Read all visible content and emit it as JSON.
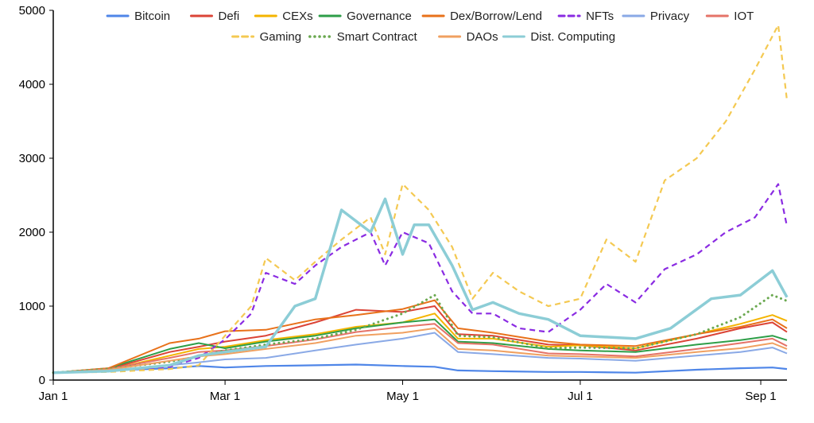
{
  "chart_data": {
    "type": "line",
    "title": "",
    "xlabel": "",
    "ylabel": "",
    "ylim": [
      0,
      5000
    ],
    "yticks": [
      0,
      1000,
      2000,
      3000,
      4000,
      5000
    ],
    "yticks_labels": [
      "0",
      "1000",
      "2000",
      "3000",
      "4000",
      "5000"
    ],
    "xlim": [
      "Jan 1",
      "Sep 10"
    ],
    "xticks": [
      {
        "label": "Jan 1",
        "date": "2021-01-01"
      },
      {
        "label": "Mar 1",
        "date": "2021-03-01"
      },
      {
        "label": "May 1",
        "date": "2021-05-01"
      },
      {
        "label": "Jul 1",
        "date": "2021-07-01"
      },
      {
        "label": "Sep 1",
        "date": "2021-09-01"
      }
    ],
    "grid": false,
    "legend_position": "top",
    "series": [
      {
        "name": "Bitcoin",
        "color": "#4f86e8",
        "style": "solid",
        "width": 2.2,
        "points": [
          [
            "2021-01-01",
            100
          ],
          [
            "2021-01-20",
            130
          ],
          [
            "2021-02-10",
            160
          ],
          [
            "2021-02-20",
            190
          ],
          [
            "2021-03-01",
            170
          ],
          [
            "2021-03-15",
            190
          ],
          [
            "2021-04-01",
            200
          ],
          [
            "2021-04-15",
            210
          ],
          [
            "2021-05-01",
            190
          ],
          [
            "2021-05-12",
            180
          ],
          [
            "2021-05-20",
            130
          ],
          [
            "2021-06-01",
            120
          ],
          [
            "2021-06-20",
            110
          ],
          [
            "2021-07-01",
            110
          ],
          [
            "2021-07-20",
            100
          ],
          [
            "2021-08-10",
            140
          ],
          [
            "2021-08-25",
            160
          ],
          [
            "2021-09-05",
            170
          ],
          [
            "2021-09-10",
            150
          ]
        ]
      },
      {
        "name": "Defi",
        "color": "#db4437",
        "style": "solid",
        "width": 2,
        "points": [
          [
            "2021-01-01",
            100
          ],
          [
            "2021-01-20",
            150
          ],
          [
            "2021-02-10",
            380
          ],
          [
            "2021-02-20",
            450
          ],
          [
            "2021-03-01",
            520
          ],
          [
            "2021-03-15",
            600
          ],
          [
            "2021-04-01",
            780
          ],
          [
            "2021-04-15",
            950
          ],
          [
            "2021-05-01",
            920
          ],
          [
            "2021-05-12",
            1000
          ],
          [
            "2021-05-20",
            620
          ],
          [
            "2021-06-01",
            600
          ],
          [
            "2021-06-20",
            480
          ],
          [
            "2021-07-01",
            470
          ],
          [
            "2021-07-20",
            400
          ],
          [
            "2021-08-10",
            560
          ],
          [
            "2021-08-25",
            700
          ],
          [
            "2021-09-05",
            780
          ],
          [
            "2021-09-10",
            650
          ]
        ]
      },
      {
        "name": "CEXs",
        "color": "#f4b400",
        "style": "solid",
        "width": 2,
        "points": [
          [
            "2021-01-01",
            100
          ],
          [
            "2021-01-20",
            140
          ],
          [
            "2021-02-10",
            330
          ],
          [
            "2021-02-20",
            420
          ],
          [
            "2021-03-01",
            450
          ],
          [
            "2021-03-15",
            540
          ],
          [
            "2021-04-01",
            620
          ],
          [
            "2021-04-15",
            720
          ],
          [
            "2021-05-01",
            780
          ],
          [
            "2021-05-12",
            900
          ],
          [
            "2021-05-20",
            560
          ],
          [
            "2021-06-01",
            560
          ],
          [
            "2021-06-20",
            450
          ],
          [
            "2021-07-01",
            470
          ],
          [
            "2021-07-20",
            430
          ],
          [
            "2021-08-10",
            620
          ],
          [
            "2021-08-25",
            760
          ],
          [
            "2021-09-05",
            880
          ],
          [
            "2021-09-10",
            800
          ]
        ]
      },
      {
        "name": "Governance",
        "color": "#2e9e48",
        "style": "solid",
        "width": 2,
        "points": [
          [
            "2021-01-01",
            100
          ],
          [
            "2021-01-20",
            160
          ],
          [
            "2021-02-10",
            420
          ],
          [
            "2021-02-20",
            500
          ],
          [
            "2021-03-01",
            430
          ],
          [
            "2021-03-15",
            520
          ],
          [
            "2021-04-01",
            600
          ],
          [
            "2021-04-15",
            700
          ],
          [
            "2021-05-01",
            780
          ],
          [
            "2021-05-12",
            820
          ],
          [
            "2021-05-20",
            520
          ],
          [
            "2021-06-01",
            500
          ],
          [
            "2021-06-20",
            420
          ],
          [
            "2021-07-01",
            400
          ],
          [
            "2021-07-20",
            380
          ],
          [
            "2021-08-10",
            480
          ],
          [
            "2021-08-25",
            540
          ],
          [
            "2021-09-05",
            600
          ],
          [
            "2021-09-10",
            540
          ]
        ]
      },
      {
        "name": "Dex/Borrow/Lend",
        "color": "#e8711a",
        "style": "solid",
        "width": 2,
        "points": [
          [
            "2021-01-01",
            100
          ],
          [
            "2021-01-20",
            160
          ],
          [
            "2021-02-10",
            500
          ],
          [
            "2021-02-20",
            560
          ],
          [
            "2021-03-01",
            660
          ],
          [
            "2021-03-15",
            680
          ],
          [
            "2021-04-01",
            820
          ],
          [
            "2021-04-15",
            880
          ],
          [
            "2021-05-01",
            960
          ],
          [
            "2021-05-12",
            1080
          ],
          [
            "2021-05-20",
            700
          ],
          [
            "2021-06-01",
            640
          ],
          [
            "2021-06-20",
            520
          ],
          [
            "2021-07-01",
            480
          ],
          [
            "2021-07-20",
            460
          ],
          [
            "2021-08-10",
            620
          ],
          [
            "2021-08-25",
            720
          ],
          [
            "2021-09-05",
            820
          ],
          [
            "2021-09-10",
            700
          ]
        ]
      },
      {
        "name": "NFTs",
        "color": "#8a2be2",
        "style": "dashed",
        "width": 2.2,
        "points": [
          [
            "2021-01-01",
            100
          ],
          [
            "2021-01-20",
            120
          ],
          [
            "2021-02-10",
            180
          ],
          [
            "2021-02-20",
            300
          ],
          [
            "2021-03-01",
            550
          ],
          [
            "2021-03-10",
            900
          ],
          [
            "2021-03-15",
            1450
          ],
          [
            "2021-03-25",
            1300
          ],
          [
            "2021-04-01",
            1550
          ],
          [
            "2021-04-10",
            1800
          ],
          [
            "2021-04-20",
            2000
          ],
          [
            "2021-04-25",
            1550
          ],
          [
            "2021-05-01",
            2000
          ],
          [
            "2021-05-10",
            1850
          ],
          [
            "2021-05-18",
            1200
          ],
          [
            "2021-05-25",
            900
          ],
          [
            "2021-06-01",
            900
          ],
          [
            "2021-06-10",
            700
          ],
          [
            "2021-06-20",
            650
          ],
          [
            "2021-07-01",
            950
          ],
          [
            "2021-07-10",
            1300
          ],
          [
            "2021-07-20",
            1050
          ],
          [
            "2021-07-30",
            1500
          ],
          [
            "2021-08-10",
            1700
          ],
          [
            "2021-08-20",
            2000
          ],
          [
            "2021-08-30",
            2200
          ],
          [
            "2021-09-07",
            2650
          ],
          [
            "2021-09-10",
            2080
          ]
        ]
      },
      {
        "name": "Privacy",
        "color": "#8aa9e6",
        "style": "solid",
        "width": 2,
        "points": [
          [
            "2021-01-01",
            100
          ],
          [
            "2021-01-20",
            120
          ],
          [
            "2021-02-10",
            200
          ],
          [
            "2021-02-20",
            240
          ],
          [
            "2021-03-01",
            280
          ],
          [
            "2021-03-15",
            300
          ],
          [
            "2021-04-01",
            400
          ],
          [
            "2021-04-15",
            480
          ],
          [
            "2021-05-01",
            560
          ],
          [
            "2021-05-12",
            640
          ],
          [
            "2021-05-20",
            380
          ],
          [
            "2021-06-01",
            350
          ],
          [
            "2021-06-20",
            300
          ],
          [
            "2021-07-01",
            290
          ],
          [
            "2021-07-20",
            260
          ],
          [
            "2021-08-10",
            330
          ],
          [
            "2021-08-25",
            380
          ],
          [
            "2021-09-05",
            440
          ],
          [
            "2021-09-10",
            360
          ]
        ]
      },
      {
        "name": "IOT",
        "color": "#e57368",
        "style": "solid",
        "width": 2,
        "points": [
          [
            "2021-01-01",
            100
          ],
          [
            "2021-01-20",
            150
          ],
          [
            "2021-02-10",
            300
          ],
          [
            "2021-02-20",
            380
          ],
          [
            "2021-03-01",
            400
          ],
          [
            "2021-03-15",
            460
          ],
          [
            "2021-04-01",
            550
          ],
          [
            "2021-04-15",
            650
          ],
          [
            "2021-05-01",
            720
          ],
          [
            "2021-05-12",
            760
          ],
          [
            "2021-05-20",
            500
          ],
          [
            "2021-06-01",
            480
          ],
          [
            "2021-06-20",
            360
          ],
          [
            "2021-07-01",
            350
          ],
          [
            "2021-07-20",
            320
          ],
          [
            "2021-08-10",
            420
          ],
          [
            "2021-08-25",
            500
          ],
          [
            "2021-09-05",
            560
          ],
          [
            "2021-09-10",
            460
          ]
        ]
      },
      {
        "name": "Gaming",
        "color": "#f4c952",
        "style": "dashed",
        "width": 2.2,
        "points": [
          [
            "2021-01-01",
            100
          ],
          [
            "2021-01-20",
            110
          ],
          [
            "2021-02-10",
            150
          ],
          [
            "2021-02-20",
            200
          ],
          [
            "2021-03-01",
            600
          ],
          [
            "2021-03-10",
            1000
          ],
          [
            "2021-03-15",
            1650
          ],
          [
            "2021-03-25",
            1350
          ],
          [
            "2021-04-01",
            1600
          ],
          [
            "2021-04-10",
            1900
          ],
          [
            "2021-04-20",
            2200
          ],
          [
            "2021-04-25",
            1700
          ],
          [
            "2021-05-01",
            2650
          ],
          [
            "2021-05-10",
            2300
          ],
          [
            "2021-05-18",
            1800
          ],
          [
            "2021-05-25",
            1100
          ],
          [
            "2021-06-01",
            1450
          ],
          [
            "2021-06-10",
            1200
          ],
          [
            "2021-06-20",
            1000
          ],
          [
            "2021-07-01",
            1100
          ],
          [
            "2021-07-10",
            1900
          ],
          [
            "2021-07-20",
            1600
          ],
          [
            "2021-07-30",
            2700
          ],
          [
            "2021-08-10",
            3000
          ],
          [
            "2021-08-20",
            3500
          ],
          [
            "2021-08-30",
            4200
          ],
          [
            "2021-09-07",
            4800
          ],
          [
            "2021-09-10",
            3780
          ]
        ]
      },
      {
        "name": "Smart Contract",
        "color": "#6aa84f",
        "style": "dotted",
        "width": 3,
        "points": [
          [
            "2021-01-01",
            100
          ],
          [
            "2021-01-20",
            150
          ],
          [
            "2021-02-10",
            250
          ],
          [
            "2021-02-20",
            320
          ],
          [
            "2021-03-01",
            400
          ],
          [
            "2021-03-15",
            480
          ],
          [
            "2021-04-01",
            560
          ],
          [
            "2021-04-15",
            680
          ],
          [
            "2021-05-01",
            900
          ],
          [
            "2021-05-12",
            1150
          ],
          [
            "2021-05-20",
            600
          ],
          [
            "2021-06-01",
            580
          ],
          [
            "2021-06-20",
            430
          ],
          [
            "2021-07-01",
            440
          ],
          [
            "2021-07-20",
            430
          ],
          [
            "2021-08-10",
            620
          ],
          [
            "2021-08-25",
            850
          ],
          [
            "2021-09-05",
            1150
          ],
          [
            "2021-09-10",
            1070
          ]
        ]
      },
      {
        "name": "DAOs",
        "color": "#f0a060",
        "style": "solid",
        "width": 2,
        "points": [
          [
            "2021-01-01",
            100
          ],
          [
            "2021-01-20",
            140
          ],
          [
            "2021-02-10",
            260
          ],
          [
            "2021-02-20",
            320
          ],
          [
            "2021-03-01",
            350
          ],
          [
            "2021-03-15",
            420
          ],
          [
            "2021-04-01",
            500
          ],
          [
            "2021-04-15",
            600
          ],
          [
            "2021-05-01",
            640
          ],
          [
            "2021-05-12",
            700
          ],
          [
            "2021-05-20",
            420
          ],
          [
            "2021-06-01",
            400
          ],
          [
            "2021-06-20",
            330
          ],
          [
            "2021-07-01",
            320
          ],
          [
            "2021-07-20",
            300
          ],
          [
            "2021-08-10",
            380
          ],
          [
            "2021-08-25",
            430
          ],
          [
            "2021-09-05",
            500
          ],
          [
            "2021-09-10",
            420
          ]
        ]
      },
      {
        "name": "Dist. Computing",
        "color": "#8ccdd6",
        "style": "solid",
        "width": 3.5,
        "points": [
          [
            "2021-01-01",
            100
          ],
          [
            "2021-01-20",
            120
          ],
          [
            "2021-02-10",
            200
          ],
          [
            "2021-02-20",
            330
          ],
          [
            "2021-03-01",
            380
          ],
          [
            "2021-03-15",
            450
          ],
          [
            "2021-03-25",
            1000
          ],
          [
            "2021-04-01",
            1100
          ],
          [
            "2021-04-10",
            2300
          ],
          [
            "2021-04-20",
            2000
          ],
          [
            "2021-04-25",
            2450
          ],
          [
            "2021-05-01",
            1700
          ],
          [
            "2021-05-05",
            2100
          ],
          [
            "2021-05-10",
            2100
          ],
          [
            "2021-05-18",
            1550
          ],
          [
            "2021-05-25",
            950
          ],
          [
            "2021-06-01",
            1050
          ],
          [
            "2021-06-10",
            900
          ],
          [
            "2021-06-20",
            820
          ],
          [
            "2021-07-01",
            600
          ],
          [
            "2021-07-20",
            560
          ],
          [
            "2021-08-01",
            700
          ],
          [
            "2021-08-15",
            1100
          ],
          [
            "2021-08-25",
            1150
          ],
          [
            "2021-09-05",
            1480
          ],
          [
            "2021-09-10",
            1120
          ]
        ]
      }
    ]
  }
}
